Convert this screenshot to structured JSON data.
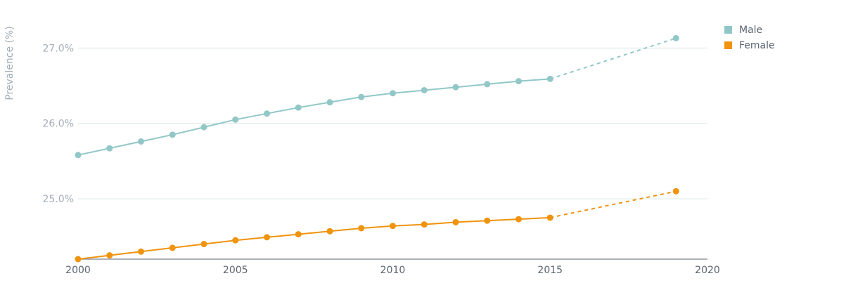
{
  "chart_data": {
    "type": "line",
    "ylabel": "Prevalence (%)",
    "xlabel": "",
    "title": "",
    "xlim": [
      2000,
      2020
    ],
    "ylim": [
      24.2,
      27.45
    ],
    "x_ticks": [
      2000,
      2005,
      2010,
      2015,
      2020
    ],
    "x_tick_labels": [
      "2000",
      "2005",
      "2010",
      "2015",
      "2020"
    ],
    "y_ticks": [
      25.0,
      26.0,
      27.0
    ],
    "y_tick_labels": [
      "25.0%",
      "26.0%",
      "27.0%"
    ],
    "grid": true,
    "legend_position": "top-right",
    "series": [
      {
        "name": "Male",
        "color": "#92c7c7",
        "points": [
          {
            "x": 2000,
            "y": 25.58
          },
          {
            "x": 2001,
            "y": 25.67
          },
          {
            "x": 2002,
            "y": 25.76
          },
          {
            "x": 2003,
            "y": 25.85
          },
          {
            "x": 2004,
            "y": 25.95
          },
          {
            "x": 2005,
            "y": 26.05
          },
          {
            "x": 2006,
            "y": 26.13
          },
          {
            "x": 2007,
            "y": 26.21
          },
          {
            "x": 2008,
            "y": 26.28
          },
          {
            "x": 2009,
            "y": 26.35
          },
          {
            "x": 2010,
            "y": 26.4
          },
          {
            "x": 2011,
            "y": 26.44
          },
          {
            "x": 2012,
            "y": 26.48
          },
          {
            "x": 2013,
            "y": 26.52
          },
          {
            "x": 2014,
            "y": 26.56
          },
          {
            "x": 2015,
            "y": 26.59
          },
          {
            "x": 2019,
            "y": 27.13
          }
        ],
        "projected_from": 2015
      },
      {
        "name": "Female",
        "color": "#f0930d",
        "points": [
          {
            "x": 2000,
            "y": 24.2
          },
          {
            "x": 2001,
            "y": 24.25
          },
          {
            "x": 2002,
            "y": 24.3
          },
          {
            "x": 2003,
            "y": 24.35
          },
          {
            "x": 2004,
            "y": 24.4
          },
          {
            "x": 2005,
            "y": 24.45
          },
          {
            "x": 2006,
            "y": 24.49
          },
          {
            "x": 2007,
            "y": 24.53
          },
          {
            "x": 2008,
            "y": 24.57
          },
          {
            "x": 2009,
            "y": 24.61
          },
          {
            "x": 2010,
            "y": 24.64
          },
          {
            "x": 2011,
            "y": 24.66
          },
          {
            "x": 2012,
            "y": 24.69
          },
          {
            "x": 2013,
            "y": 24.71
          },
          {
            "x": 2014,
            "y": 24.73
          },
          {
            "x": 2015,
            "y": 24.75
          },
          {
            "x": 2019,
            "y": 25.1
          }
        ],
        "projected_from": 2015
      }
    ]
  }
}
